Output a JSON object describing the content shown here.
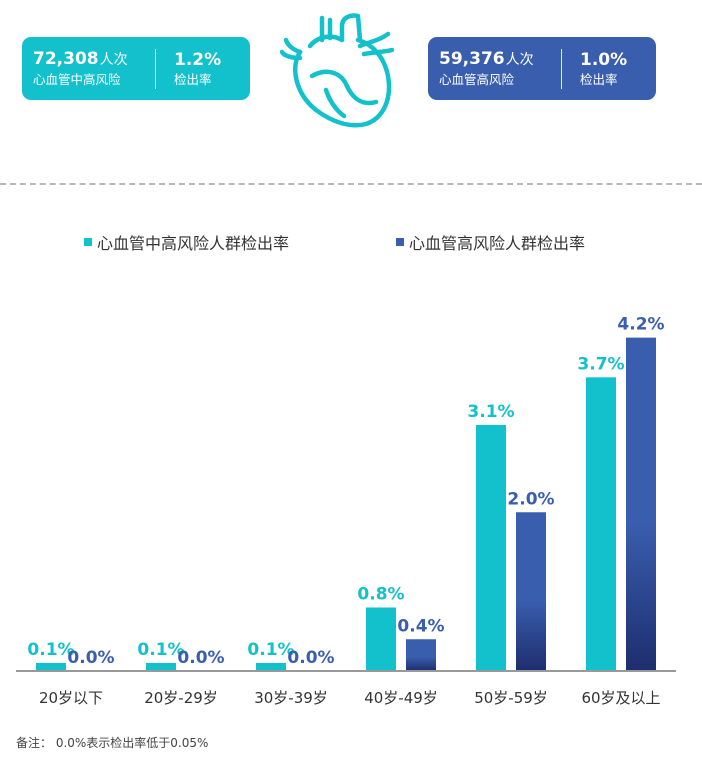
{
  "stats": {
    "left": {
      "count": "72,308",
      "count_unit": "人次",
      "count_label": "心血管中高风险",
      "rate": "1.2%",
      "rate_label": "检出率"
    },
    "right": {
      "count": "59,376",
      "count_unit": "人次",
      "count_label": "心血管高风险",
      "rate": "1.0%",
      "rate_label": "检出率"
    }
  },
  "colors": {
    "teal": "#13c1cc",
    "blue": "#3a5eae",
    "blue_dark": "#1d2e6e",
    "axis": "#999999",
    "tick_text": "#333333"
  },
  "footnote": "备注：  0.0%表示检出率低于0.05%",
  "chart_data": {
    "type": "bar",
    "categories": [
      "20岁以下",
      "20岁-29岁",
      "30岁-39岁",
      "40岁-49岁",
      "50岁-59岁",
      "60岁及以上"
    ],
    "series": [
      {
        "name": "心血管中高风险人群检出率",
        "values": [
          0.1,
          0.1,
          0.1,
          0.8,
          3.1,
          3.7
        ],
        "labels": [
          "0.1%",
          "0.1%",
          "0.1%",
          "0.8%",
          "3.1%",
          "3.7%"
        ],
        "color": "#13c1cc"
      },
      {
        "name": "心血管高风险人群检出率",
        "values": [
          0.0,
          0.0,
          0.0,
          0.4,
          2.0,
          4.2
        ],
        "labels": [
          "0.0%",
          "0.0%",
          "0.0%",
          "0.4%",
          "2.0%",
          "4.2%"
        ],
        "color": "#3a5eae"
      }
    ],
    "ylim": [
      0,
      4.8
    ],
    "grid": false,
    "legend": "top-center"
  }
}
